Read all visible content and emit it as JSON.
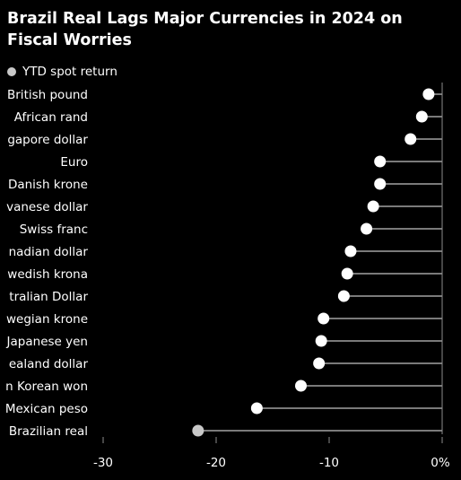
{
  "header": {
    "title": "Brazil Real Lags Major Currencies in 2024 on Fiscal Worries"
  },
  "legend": {
    "label": "YTD spot return",
    "swatch_color": "#c8c8c8"
  },
  "chart_data": {
    "type": "dot",
    "title": "Brazil Real Lags Major Currencies in 2024 on Fiscal Worries",
    "categories": [
      "British pound",
      "South African rand",
      "Singapore dollar",
      "Euro",
      "Danish krone",
      "Taiwanese dollar",
      "Swiss franc",
      "Canadian dollar",
      "Swedish krona",
      "Australian Dollar",
      "Norwegian krone",
      "Japanese yen",
      "New Zealand dollar",
      "South Korean won",
      "Mexican peso",
      "Brazilian real"
    ],
    "category_labels_visible": [
      "British pound",
      "African rand",
      "gapore dollar",
      "Euro",
      "Danish krone",
      "vanese dollar",
      "Swiss franc",
      "nadian dollar",
      "wedish krona",
      "tralian Dollar",
      "wegian krone",
      "Japanese yen",
      "ealand dollar",
      "n Korean won",
      "Mexican peso",
      "Brazilian real"
    ],
    "series": [
      {
        "name": "YTD spot return",
        "values": [
          -1.2,
          -1.8,
          -2.8,
          -5.5,
          -5.5,
          -6.1,
          -6.7,
          -8.1,
          -8.4,
          -8.7,
          -10.5,
          -10.7,
          -10.9,
          -12.5,
          -16.4,
          -21.6
        ]
      }
    ],
    "highlight_category": "Brazilian real",
    "xlim": [
      -30,
      0
    ],
    "x_ticks": [
      {
        "value": -30,
        "label": "-30"
      },
      {
        "value": -20,
        "label": "-20"
      },
      {
        "value": -10,
        "label": "-10"
      },
      {
        "value": 0,
        "label": "0%"
      }
    ],
    "xlabel": "",
    "ylabel": "",
    "colors": {
      "dot": "#ffffff",
      "highlight_dot": "#c8c8c8",
      "line": "#7a7a7a",
      "axis": "#8c8c8c"
    },
    "legend_position": "top-left",
    "grid": false
  }
}
